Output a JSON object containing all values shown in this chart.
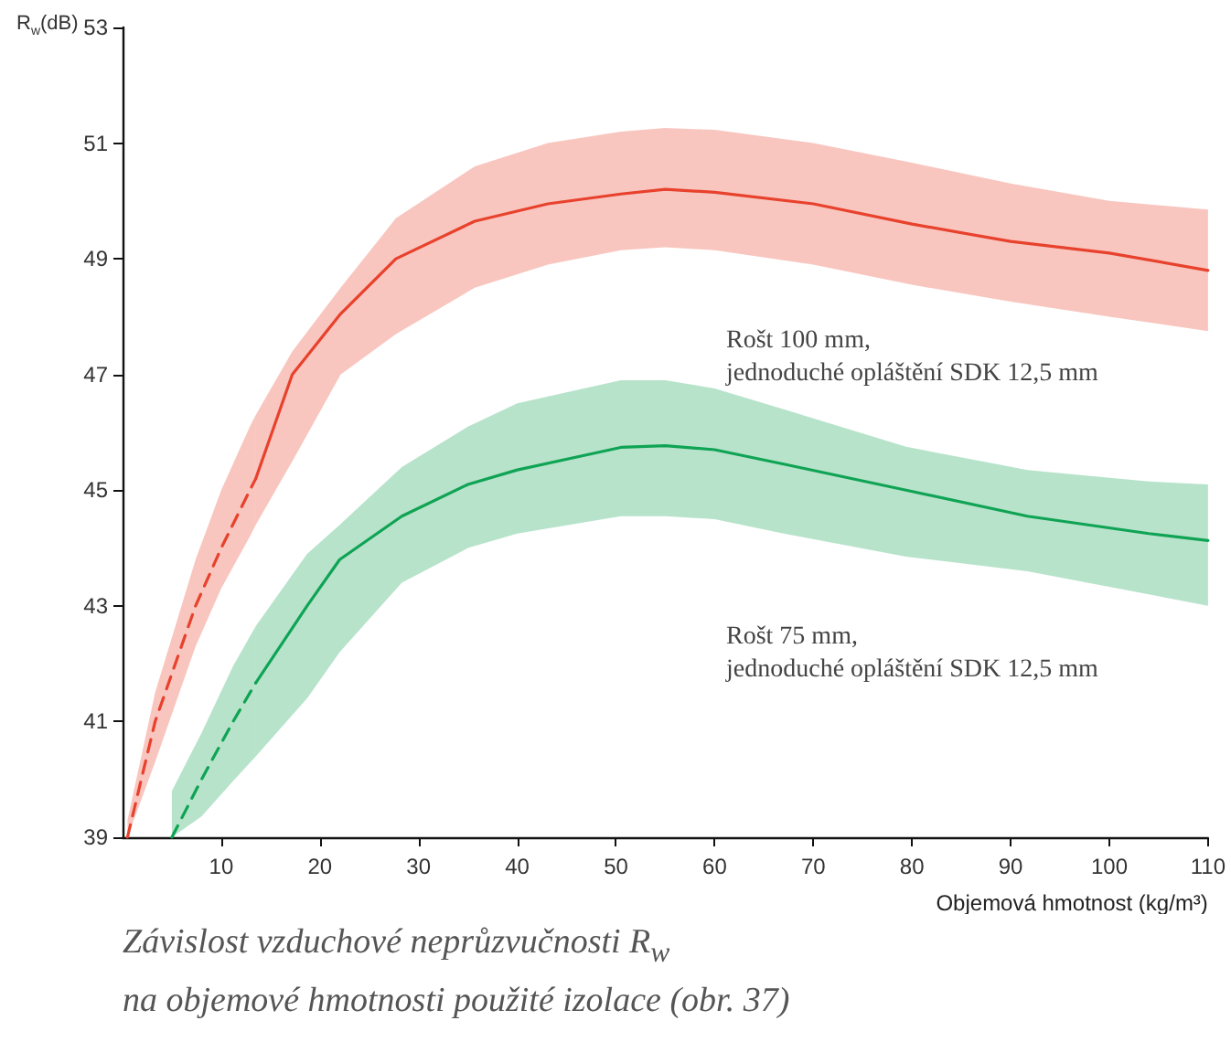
{
  "chart_data": {
    "type": "line",
    "ylabel": "R$_{w}$(dB)",
    "xlabel": "Objemová hmotnost (kg/m³)",
    "xlim": [
      0,
      110
    ],
    "xticks": [
      10,
      20,
      30,
      40,
      50,
      60,
      70,
      80,
      90,
      100,
      110
    ],
    "ylim": [
      39,
      53
    ],
    "yticks": [
      39,
      41,
      43,
      45,
      47,
      49,
      51,
      53
    ],
    "grid": false,
    "marker": "none",
    "annotations": [
      "Rošt 100 mm,\njednoduché opláštění SDK 12,5 mm",
      "Rošt 75 mm,\njednoduché opláštění SDK 12,5 mm",
      "Závislost vzduchové neprůzvučnosti R$_{w}$\nna objemové hmotnosti použité izolace (obr. 37)"
    ],
    "series": [
      {
        "color": "#e8412c",
        "line_style": "dashed",
        "x": [
          0.5,
          3.3,
          7.4,
          10,
          12.9,
          13.5
        ],
        "values": [
          39,
          41,
          43,
          44,
          45,
          45.2
        ],
        "lower": [
          39,
          40.3,
          42.3,
          43.3,
          44.2,
          44.4
        ],
        "upper": [
          39.3,
          41.5,
          43.8,
          45,
          46.1,
          46.3
        ]
      },
      {
        "color": "#e8412c",
        "line_style": "solid",
        "x": [
          13.5,
          17.2,
          22.1,
          27.7,
          35.7,
          43.1,
          50.5,
          55,
          60,
          70,
          80,
          90,
          100,
          110
        ],
        "values": [
          45.2,
          47,
          48.05,
          49,
          49.65,
          49.95,
          50.12,
          50.2,
          50.15,
          49.95,
          49.6,
          49.3,
          49.1,
          48.8
        ],
        "lower": [
          44.4,
          45.5,
          47,
          47.7,
          48.5,
          48.9,
          49.15,
          49.2,
          49.15,
          48.9,
          48.55,
          48.26,
          48,
          47.75
        ],
        "upper": [
          46.3,
          47.4,
          48.5,
          49.7,
          50.6,
          51,
          51.2,
          51.26,
          51.23,
          51,
          50.66,
          50.3,
          50,
          49.85
        ]
      },
      {
        "color": "#0fa354",
        "line_style": "dashed",
        "x": [
          5,
          8,
          11.2,
          13.5
        ],
        "values": [
          39,
          40,
          41,
          41.67
        ],
        "lower": [
          39,
          39.36,
          39.97,
          40.4
        ],
        "upper": [
          39.8,
          40.8,
          41.96,
          42.65
        ]
      },
      {
        "color": "#0fa354",
        "line_style": "solid",
        "x": [
          13.5,
          18.7,
          22,
          28.3,
          35,
          40,
          50.5,
          55,
          60,
          67,
          79.4,
          91.7,
          104,
          110
        ],
        "values": [
          41.67,
          43,
          43.8,
          44.55,
          45.1,
          45.35,
          45.74,
          45.77,
          45.7,
          45.45,
          45,
          44.55,
          44.25,
          44.13
        ],
        "lower": [
          40.4,
          41.4,
          42.2,
          43.4,
          44,
          44.25,
          44.55,
          44.55,
          44.5,
          44.25,
          43.85,
          43.6,
          43.2,
          43
        ],
        "upper": [
          42.65,
          43.9,
          44.4,
          45.4,
          46.1,
          46.5,
          46.9,
          46.9,
          46.76,
          46.4,
          45.75,
          45.35,
          45.15,
          45.1
        ]
      }
    ]
  }
}
